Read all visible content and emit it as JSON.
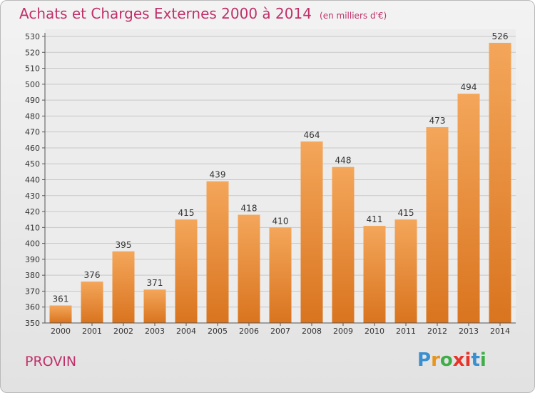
{
  "title": "Achats et Charges Externes 2000 à 2014",
  "subtitle": "(en milliers d'€)",
  "commune": "PROVIN",
  "logo": {
    "letters": [
      "P",
      "r",
      "o",
      "x",
      "i",
      "t",
      "i"
    ],
    "colors": [
      "#3a8fd0",
      "#e8951c",
      "#3fae49",
      "#e8332a",
      "#e8332a",
      "#3a8fd0",
      "#3fae49"
    ]
  },
  "colors": {
    "bar_top": "#f4a65a",
    "bar_bottom": "#d9741f",
    "title": "#c0306a"
  },
  "chart_data": {
    "type": "bar",
    "categories": [
      "2000",
      "2001",
      "2002",
      "2003",
      "2004",
      "2005",
      "2006",
      "2007",
      "2008",
      "2009",
      "2010",
      "2011",
      "2012",
      "2013",
      "2014"
    ],
    "values": [
      361,
      376,
      395,
      371,
      415,
      439,
      418,
      410,
      464,
      448,
      411,
      415,
      473,
      494,
      526
    ],
    "ylim": [
      350,
      530
    ],
    "yticks": [
      350,
      360,
      370,
      380,
      390,
      400,
      410,
      420,
      430,
      440,
      450,
      460,
      470,
      480,
      490,
      500,
      510,
      520,
      530
    ],
    "grid": true
  }
}
